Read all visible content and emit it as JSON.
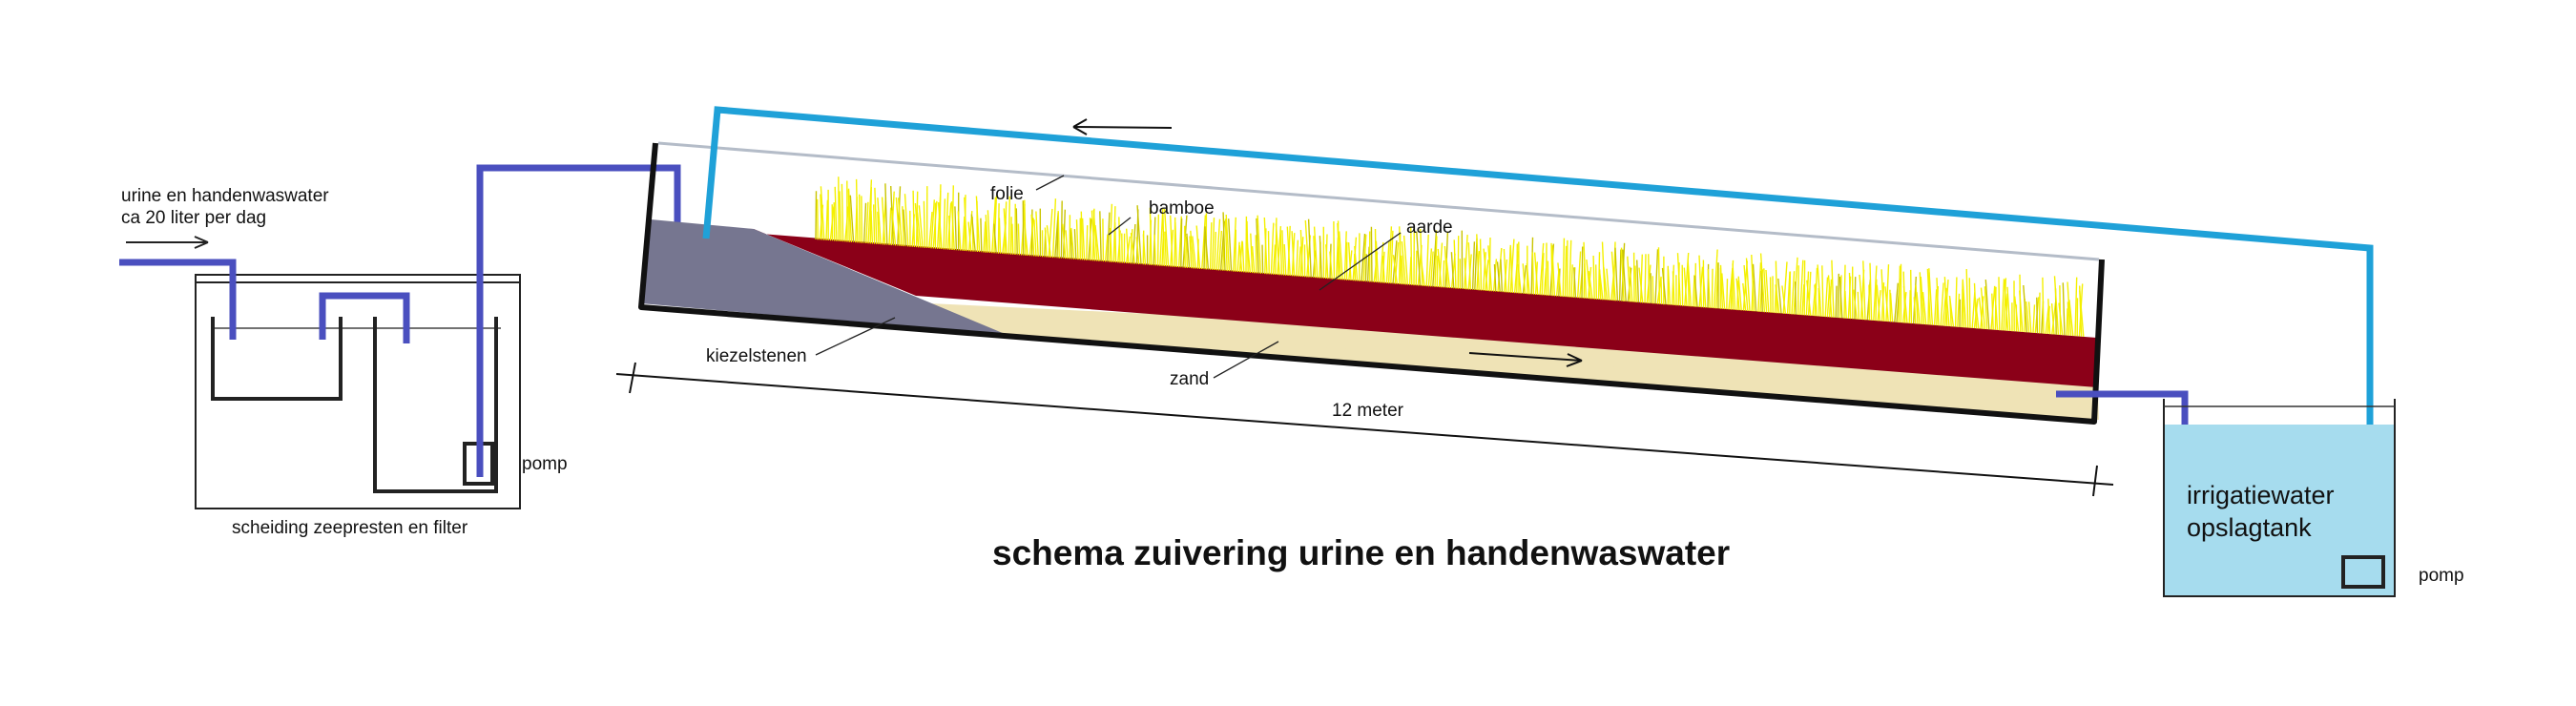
{
  "diagram": {
    "title": "schema zuivering urine en handenwaswater",
    "inflow": {
      "line1": "urine en handenwaswater",
      "line2": "ca 20 liter per dag"
    },
    "separation_tank": {
      "caption": "scheiding zeepresten en filter",
      "pump_label": "pomp"
    },
    "bed": {
      "labels": {
        "foil": "folie",
        "bamboo": "bamboe",
        "soil": "aarde",
        "pebbles": "kiezelstenen",
        "sand": "zand"
      },
      "length_label": "12 meter"
    },
    "storage_tank": {
      "line1": "irrigatiewater",
      "line2": "opslagtank",
      "pump_label": "pomp"
    },
    "colors": {
      "pipe_inlet": "#4a4fbf",
      "pipe_return": "#1fa1d8",
      "soil": "#8b0018",
      "sand": "#efe3b6",
      "pebbles": "#767690",
      "bamboo": "#f4f000",
      "water": "#a6dcee",
      "foil": "#b4bcc8"
    }
  }
}
